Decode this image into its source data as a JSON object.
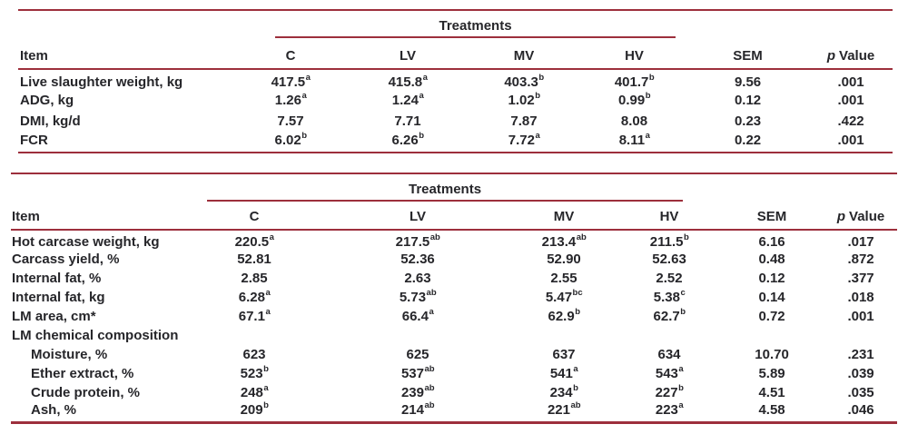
{
  "page": {
    "background": "#ffffff"
  },
  "styles": {
    "rule_color": "#9d2f3c",
    "text_color": "#26262a"
  },
  "tables": [
    {
      "name": "growth-performance",
      "spanner": "Treatments",
      "item_header": "Item",
      "columns": [
        "C",
        "LV",
        "MV",
        "HV",
        "SEM"
      ],
      "p_header": {
        "symbol": "p",
        "word": "Value"
      },
      "rows": [
        {
          "item": "Live slaughter weight, kg",
          "cells": [
            {
              "v": "417.5",
              "s": "a"
            },
            {
              "v": "415.8",
              "s": "a"
            },
            {
              "v": "403.3",
              "s": "b"
            },
            {
              "v": "401.7",
              "s": "b"
            },
            {
              "v": "9.56"
            },
            {
              "v": ".001"
            }
          ]
        },
        {
          "item": "ADG, kg",
          "cells": [
            {
              "v": "1.26",
              "s": "a"
            },
            {
              "v": "1.24",
              "s": "a"
            },
            {
              "v": "1.02",
              "s": "b"
            },
            {
              "v": "0.99",
              "s": "b"
            },
            {
              "v": "0.12"
            },
            {
              "v": ".001"
            }
          ]
        },
        {
          "item": "DMI, kg/d",
          "cells": [
            {
              "v": "7.57"
            },
            {
              "v": "7.71"
            },
            {
              "v": "7.87"
            },
            {
              "v": "8.08"
            },
            {
              "v": "0.23"
            },
            {
              "v": ".422"
            }
          ]
        },
        {
          "item": "FCR",
          "cells": [
            {
              "v": "6.02",
              "s": "b"
            },
            {
              "v": "6.26",
              "s": "b"
            },
            {
              "v": "7.72",
              "s": "a"
            },
            {
              "v": "8.11",
              "s": "a"
            },
            {
              "v": "0.22"
            },
            {
              "v": ".001"
            }
          ]
        }
      ]
    },
    {
      "name": "carcass-characteristics",
      "spanner": "Treatments",
      "item_header": "Item",
      "columns": [
        "C",
        "LV",
        "MV",
        "HV",
        "SEM"
      ],
      "p_header": {
        "symbol": "p",
        "word": "Value"
      },
      "rows": [
        {
          "item": "Hot carcase weight, kg",
          "cells": [
            {
              "v": "220.5",
              "s": "a"
            },
            {
              "v": "217.5",
              "s": "ab"
            },
            {
              "v": "213.4",
              "s": "ab"
            },
            {
              "v": "211.5",
              "s": "b"
            },
            {
              "v": "6.16"
            },
            {
              "v": ".017"
            }
          ]
        },
        {
          "item": "Carcass yield, %",
          "cells": [
            {
              "v": "52.81"
            },
            {
              "v": "52.36"
            },
            {
              "v": "52.90"
            },
            {
              "v": "52.63"
            },
            {
              "v": "0.48"
            },
            {
              "v": ".872"
            }
          ]
        },
        {
          "item": "Internal fat, %",
          "cells": [
            {
              "v": "2.85"
            },
            {
              "v": "2.63"
            },
            {
              "v": "2.55"
            },
            {
              "v": "2.52"
            },
            {
              "v": "0.12"
            },
            {
              "v": ".377"
            }
          ]
        },
        {
          "item": "Internal fat, kg",
          "cells": [
            {
              "v": "6.28",
              "s": "a"
            },
            {
              "v": "5.73",
              "s": "ab"
            },
            {
              "v": "5.47",
              "s": "bc"
            },
            {
              "v": "5.38",
              "s": "c"
            },
            {
              "v": "0.14"
            },
            {
              "v": ".018"
            }
          ]
        },
        {
          "item": "LM area, cm*",
          "cells": [
            {
              "v": "67.1",
              "s": "a"
            },
            {
              "v": "66.4",
              "s": "a"
            },
            {
              "v": "62.9",
              "s": "b"
            },
            {
              "v": "62.7",
              "s": "b"
            },
            {
              "v": "0.72"
            },
            {
              "v": ".001"
            }
          ]
        },
        {
          "item": "LM chemical composition",
          "section": true,
          "cells": []
        },
        {
          "item": "Moisture, %",
          "indent": true,
          "cells": [
            {
              "v": "623"
            },
            {
              "v": "625"
            },
            {
              "v": "637"
            },
            {
              "v": "634"
            },
            {
              "v": "10.70"
            },
            {
              "v": ".231"
            }
          ]
        },
        {
          "item": "Ether extract, %",
          "indent": true,
          "cells": [
            {
              "v": "523",
              "s": "b"
            },
            {
              "v": "537",
              "s": "ab"
            },
            {
              "v": "541",
              "s": "a"
            },
            {
              "v": "543",
              "s": "a"
            },
            {
              "v": "5.89"
            },
            {
              "v": ".039"
            }
          ]
        },
        {
          "item": "Crude protein, %",
          "indent": true,
          "cells": [
            {
              "v": "248",
              "s": "a"
            },
            {
              "v": "239",
              "s": "ab"
            },
            {
              "v": "234",
              "s": "b"
            },
            {
              "v": "227",
              "s": "b"
            },
            {
              "v": "4.51"
            },
            {
              "v": ".035"
            }
          ]
        },
        {
          "item": "Ash, %",
          "indent": true,
          "cells": [
            {
              "v": "209",
              "s": "b"
            },
            {
              "v": "214",
              "s": "ab"
            },
            {
              "v": "221",
              "s": "ab"
            },
            {
              "v": "223",
              "s": "a"
            },
            {
              "v": "4.58"
            },
            {
              "v": ".046"
            }
          ]
        }
      ]
    }
  ]
}
